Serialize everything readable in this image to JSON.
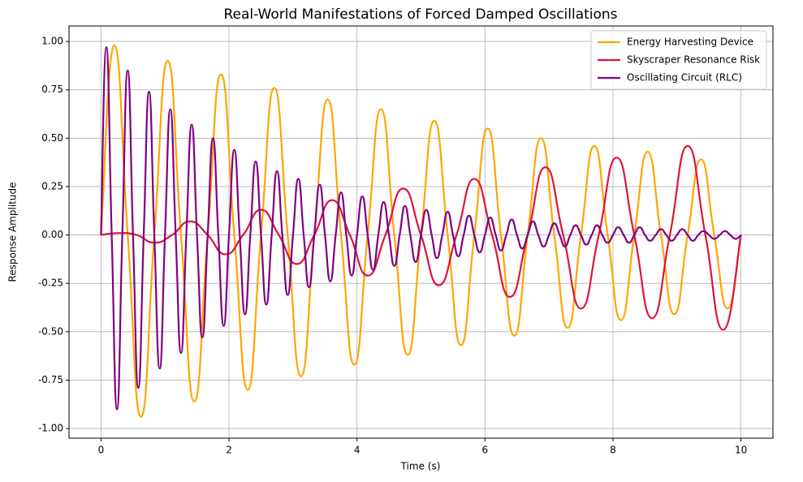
{
  "chart_data": {
    "type": "line",
    "title": "Real-World Manifestations of Forced Damped Oscillations",
    "xlabel": "Time (s)",
    "ylabel": "Response Amplitude",
    "xlim": [
      -0.5,
      10.5
    ],
    "ylim": [
      -1.05,
      1.08
    ],
    "xticks": [
      0,
      2,
      4,
      6,
      8,
      10
    ],
    "yticks": [
      {
        "value": -1,
        "label": "-1.00"
      },
      -0.75,
      {
        "value": -0.5,
        "label": "-0.50"
      },
      -0.25,
      {
        "value": 0,
        "label": "0.00"
      },
      0.25,
      {
        "value": 0.5,
        "label": "0.50"
      },
      0.75,
      {
        "value": 1,
        "label": "1.00"
      }
    ],
    "grid": true,
    "legend": "upper right",
    "series": [
      {
        "name": "Energy Harvesting Device",
        "color": "#ffa500",
        "x": [
          0,
          0.208,
          0.417,
          0.625,
          0.833,
          1.042,
          1.25,
          1.458,
          1.667,
          1.875,
          2.083,
          2.292,
          2.5,
          2.708,
          2.917,
          3.125,
          3.333,
          3.542,
          3.75,
          3.958,
          4.167,
          4.375,
          4.583,
          4.792,
          5,
          5.208,
          5.417,
          5.625,
          5.833,
          6.042,
          6.25,
          6.458,
          6.667,
          6.875,
          7.083,
          7.292,
          7.5,
          7.708,
          7.917,
          8.125,
          8.333,
          8.542,
          8.75,
          8.958,
          9.167,
          9.375,
          9.583,
          9.792,
          10
        ],
        "values": [
          0,
          0.98,
          0,
          -0.94,
          0,
          0.9,
          0,
          -0.86,
          0,
          0.83,
          0,
          -0.8,
          0,
          0.76,
          0,
          -0.73,
          0,
          0.7,
          0,
          -0.67,
          0,
          0.65,
          0,
          -0.62,
          0,
          0.59,
          0,
          -0.57,
          0,
          0.55,
          0,
          -0.52,
          0,
          0.5,
          0,
          -0.48,
          0,
          0.46,
          0,
          -0.44,
          0,
          0.43,
          0,
          -0.41,
          0,
          0.39,
          0,
          -0.38,
          0
        ]
      },
      {
        "name": "Skyscraper Resonance Risk",
        "color": "#dc143c",
        "x": [
          0,
          0.278,
          0.556,
          0.833,
          1.111,
          1.389,
          1.667,
          1.944,
          2.222,
          2.5,
          2.778,
          3.056,
          3.333,
          3.611,
          3.889,
          4.167,
          4.444,
          4.722,
          5,
          5.278,
          5.556,
          5.833,
          6.111,
          6.389,
          6.667,
          6.944,
          7.222,
          7.5,
          7.778,
          8.056,
          8.333,
          8.611,
          8.889,
          9.167,
          9.444,
          9.722,
          10
        ],
        "values": [
          0,
          0.01,
          0,
          -0.04,
          0,
          0.07,
          0,
          -0.1,
          0,
          0.13,
          0,
          -0.15,
          0,
          0.18,
          0,
          -0.21,
          0,
          0.24,
          0,
          -0.26,
          0,
          0.29,
          0,
          -0.32,
          0,
          0.35,
          0,
          -0.38,
          0,
          0.4,
          0,
          -0.43,
          0,
          0.46,
          0,
          -0.49,
          0
        ]
      },
      {
        "name": "Oscillating Circuit (RLC)",
        "color": "#800080",
        "x": [
          0,
          0.083,
          0.167,
          0.25,
          0.333,
          0.417,
          0.5,
          0.583,
          0.667,
          0.75,
          0.833,
          0.917,
          1,
          1.083,
          1.167,
          1.25,
          1.333,
          1.417,
          1.5,
          1.583,
          1.667,
          1.75,
          1.833,
          1.917,
          2,
          2.083,
          2.167,
          2.25,
          2.333,
          2.417,
          2.5,
          2.583,
          2.667,
          2.75,
          2.833,
          2.917,
          3,
          3.083,
          3.167,
          3.25,
          3.333,
          3.417,
          3.5,
          3.583,
          3.667,
          3.75,
          3.833,
          3.917,
          4,
          4.083,
          4.167,
          4.25,
          4.333,
          4.417,
          4.5,
          4.583,
          4.667,
          4.75,
          4.833,
          4.917,
          5,
          5.083,
          5.167,
          5.25,
          5.333,
          5.417,
          5.5,
          5.583,
          5.667,
          5.75,
          5.833,
          5.917,
          6,
          6.083,
          6.167,
          6.25,
          6.333,
          6.417,
          6.5,
          6.583,
          6.667,
          6.75,
          6.833,
          6.917,
          7,
          7.083,
          7.167,
          7.25,
          7.333,
          7.417,
          7.5,
          7.583,
          7.667,
          7.75,
          7.833,
          7.917,
          8,
          8.083,
          8.167,
          8.25,
          8.333,
          8.417,
          8.5,
          8.583,
          8.667,
          8.75,
          8.833,
          8.917,
          9,
          9.083,
          9.167,
          9.25,
          9.333,
          9.417,
          9.5,
          9.583,
          9.667,
          9.75,
          9.833,
          9.917,
          10
        ],
        "values": [
          0,
          0.97,
          0,
          -0.9,
          0,
          0.85,
          0,
          -0.79,
          0,
          0.74,
          0,
          -0.69,
          0,
          0.65,
          0,
          -0.61,
          0,
          0.57,
          0,
          -0.53,
          0,
          0.5,
          0,
          -0.47,
          0,
          0.44,
          0,
          -0.41,
          0,
          0.38,
          0,
          -0.36,
          0,
          0.33,
          0,
          -0.31,
          0,
          0.29,
          0,
          -0.27,
          0,
          0.26,
          0,
          -0.24,
          0,
          0.22,
          0,
          -0.21,
          0,
          0.2,
          0,
          -0.18,
          0,
          0.17,
          0,
          -0.16,
          0,
          0.15,
          0,
          -0.14,
          0,
          0.13,
          0,
          -0.12,
          0,
          0.12,
          0,
          -0.11,
          0,
          0.1,
          0,
          -0.09,
          0,
          0.09,
          0,
          -0.08,
          0,
          0.08,
          0,
          -0.07,
          0,
          0.07,
          0,
          -0.06,
          0,
          0.06,
          0,
          -0.06,
          0,
          0.05,
          0,
          -0.05,
          0,
          0.05,
          0,
          -0.04,
          0,
          0.04,
          0,
          -0.04,
          0,
          0.04,
          0,
          -0.03,
          0,
          0.03,
          0,
          -0.03,
          0,
          0.03,
          0,
          -0.03,
          0,
          0.02,
          0,
          -0.02,
          0,
          0.02,
          0,
          -0.02,
          0
        ]
      }
    ]
  }
}
